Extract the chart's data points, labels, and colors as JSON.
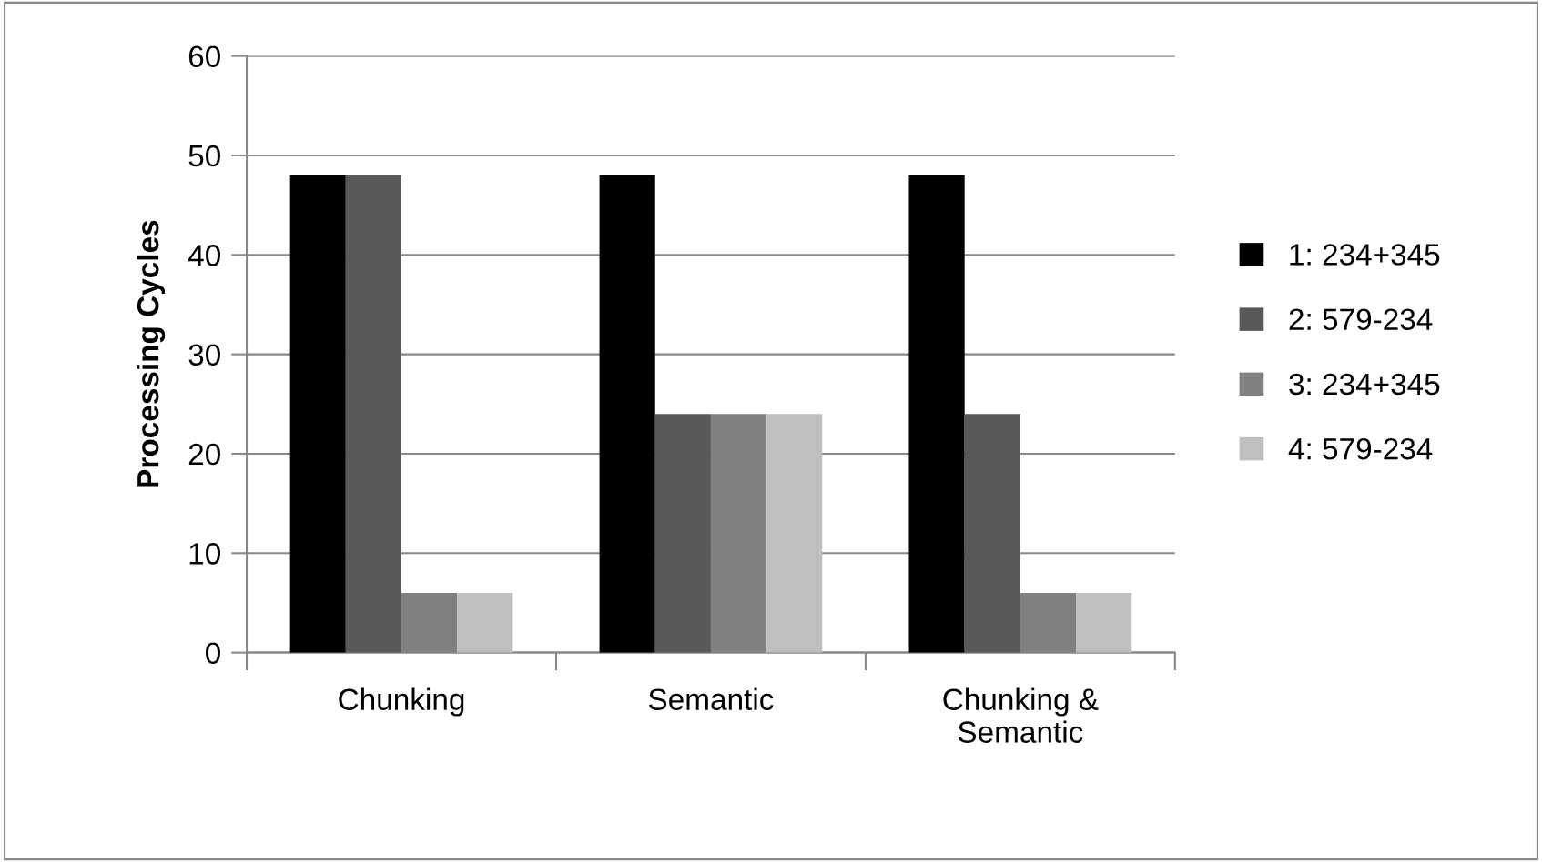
{
  "chart_data": {
    "type": "bar",
    "ylabel": "Processing Cycles",
    "categories": [
      "Chunking",
      "Semantic",
      "Chunking & Semantic"
    ],
    "series": [
      {
        "name": "1: 234+345",
        "color": "#000000",
        "values": [
          48,
          48,
          48
        ]
      },
      {
        "name": "2: 579-234",
        "color": "#595959",
        "values": [
          48,
          24,
          24
        ]
      },
      {
        "name": "3: 234+345",
        "color": "#808080",
        "values": [
          6,
          24,
          6
        ]
      },
      {
        "name": "4: 579-234",
        "color": "#bfbfbf",
        "values": [
          6,
          24,
          6
        ]
      }
    ],
    "ylim": [
      0,
      60
    ],
    "yticks": [
      0,
      10,
      20,
      30,
      40,
      50,
      60
    ],
    "grid": "y",
    "legend": "right"
  }
}
